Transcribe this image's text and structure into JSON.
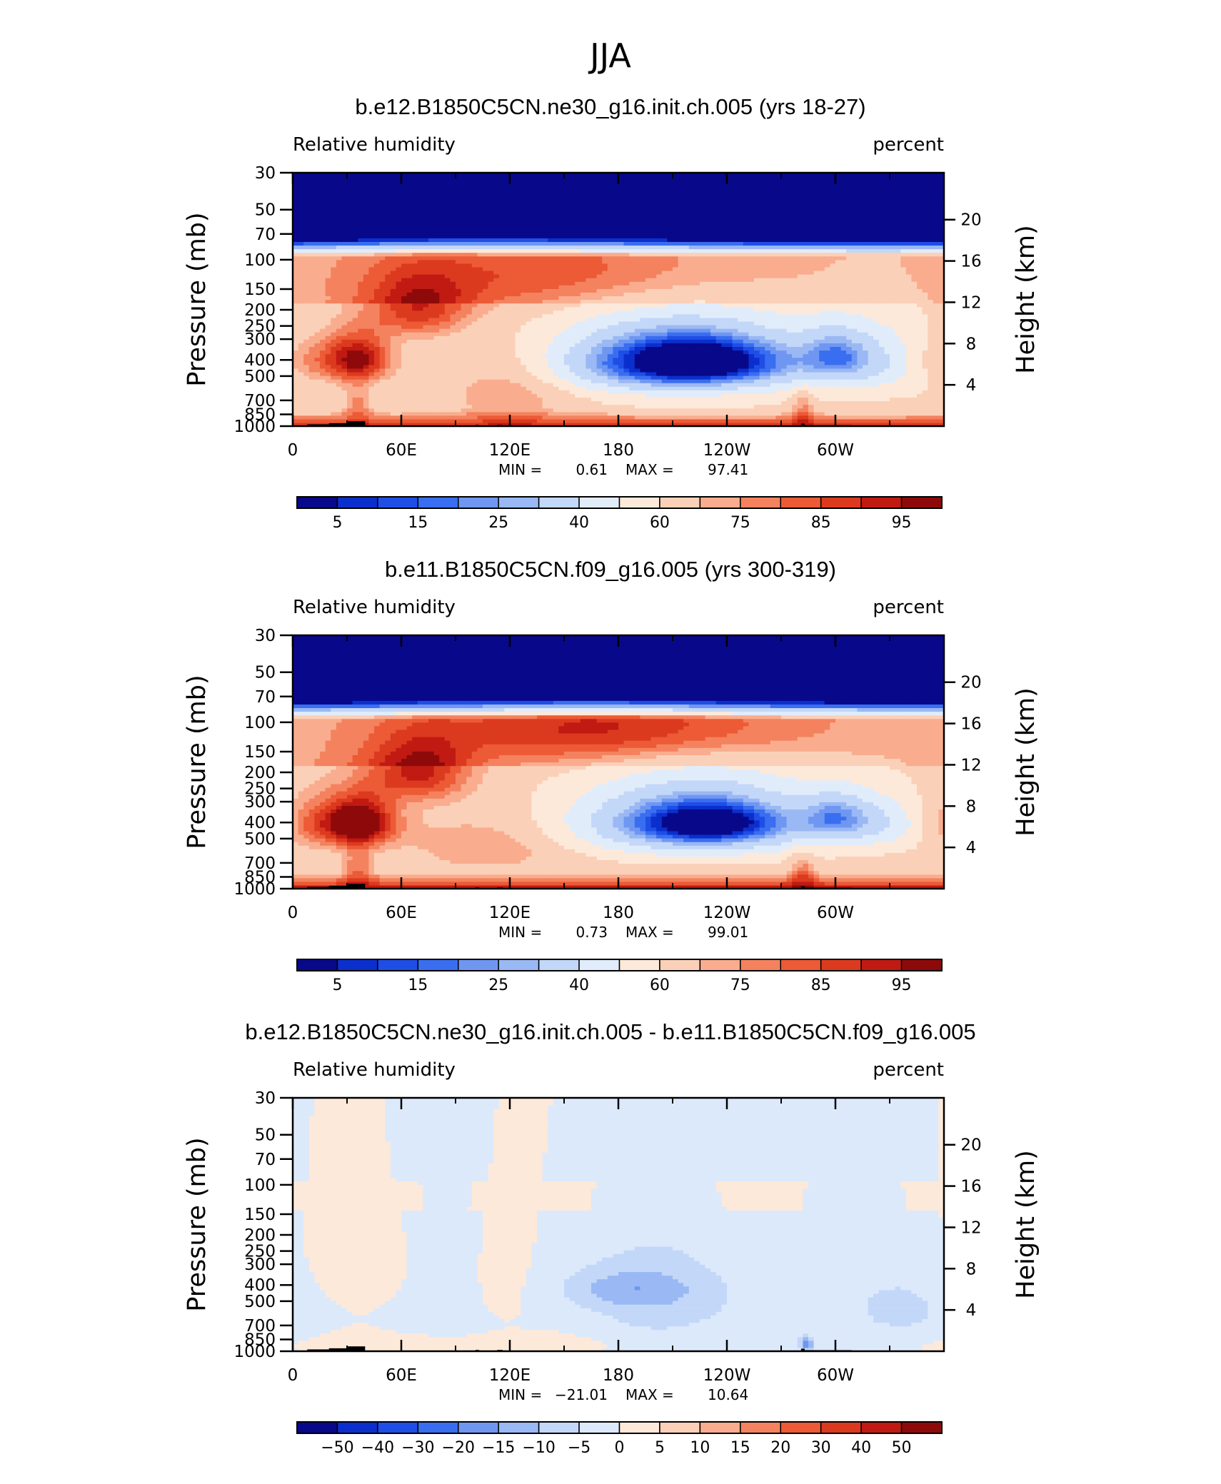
{
  "season": "JJA",
  "colors": {
    "rh_levels": [
      "#08088a",
      "#0b2fcc",
      "#1f4ee6",
      "#3a6ef0",
      "#6f97f2",
      "#9ab8f4",
      "#c3d7f8",
      "#e1ecfb",
      "#fde9d9",
      "#fbd0b8",
      "#f9ad8e",
      "#f4825f",
      "#ec5a36",
      "#dc3a1f",
      "#c01a12",
      "#8e0a0a"
    ],
    "diff_levels": [
      "#08088a",
      "#0b2fcc",
      "#1f4ee6",
      "#3a6ef0",
      "#6f97f2",
      "#9ab8f4",
      "#c3d7f8",
      "#dce9fb",
      "#fde9d9",
      "#fbd0b8",
      "#f9ad8e",
      "#f4825f",
      "#ec5a36",
      "#dc3a1f",
      "#c01a12",
      "#8e0a0a"
    ],
    "terrain": "#000000"
  },
  "chart_data": [
    {
      "type": "heatmap",
      "title": "b.e12.B1850C5CN.ne30_g16.init.ch.005 (yrs 18-27)",
      "left_string": "Relative  humidity",
      "right_string": "percent",
      "ylabel": "Pressure  (mb)",
      "ylabel_right": "Height  (km)",
      "x_ticks": [
        "0",
        "60E",
        "120E",
        "180",
        "120W",
        "60W"
      ],
      "x_tick_lon": [
        0,
        60,
        120,
        180,
        240,
        300
      ],
      "xlim": [
        0,
        360
      ],
      "y_ticks": [
        "1000",
        "850",
        "700",
        "500",
        "400",
        "300",
        "250",
        "200",
        "150",
        "100",
        "70",
        "50",
        "30"
      ],
      "y_tick_values": [
        1000,
        850,
        700,
        500,
        400,
        300,
        250,
        200,
        150,
        100,
        70,
        50,
        30
      ],
      "ylim": [
        1000,
        30
      ],
      "height_ticks": [
        "4",
        "8",
        "12",
        "16",
        "20"
      ],
      "height_values": [
        4,
        8,
        12,
        16,
        20
      ],
      "stats": {
        "min_label": "MIN =",
        "min": "0.61",
        "max_label": "MAX =",
        "max": "97.41"
      },
      "colorbar_labels": [
        "5",
        "15",
        "25",
        "40",
        "60",
        "75",
        "85",
        "95"
      ],
      "fields": {
        "background": 62,
        "blobs": [
          {
            "lon": 0,
            "p": 400,
            "dlon": 30,
            "dp": 110,
            "v": 30
          },
          {
            "lon": 37,
            "p": 390,
            "dlon": 12,
            "dp": 90,
            "v": 25
          },
          {
            "lon": 215,
            "p": 410,
            "dlon": 50,
            "dp": 140,
            "v": -60
          },
          {
            "lon": 225,
            "p": 400,
            "dlon": 22,
            "dp": 70,
            "v": -25
          },
          {
            "lon": 330,
            "p": 400,
            "dlon": 30,
            "dp": 120,
            "v": -35
          },
          {
            "lon": 300,
            "p": 360,
            "dlon": 12,
            "dp": 90,
            "v": -15
          },
          {
            "lon": 70,
            "p": 200,
            "dlon": 20,
            "dp": 60,
            "v": 25
          },
          {
            "lon": 120,
            "p": 600,
            "dlon": 25,
            "dp": 220,
            "v": 15
          },
          {
            "lon": 150,
            "p": 120,
            "dlon": 80,
            "dp": 50,
            "v": 15
          },
          {
            "lon": 36,
            "p": 750,
            "dlon": 6,
            "dp": 150,
            "v": 15
          },
          {
            "lon": 282,
            "p": 780,
            "dlon": 5,
            "dp": 160,
            "v": 15
          }
        ],
        "boundary_layer": 28,
        "upper_strat": true
      }
    },
    {
      "type": "heatmap",
      "title": "b.e11.B1850C5CN.f09_g16.005 (yrs 300-319)",
      "left_string": "Relative  humidity",
      "right_string": "percent",
      "ylabel": "Pressure  (mb)",
      "ylabel_right": "Height  (km)",
      "x_ticks": [
        "0",
        "60E",
        "120E",
        "180",
        "120W",
        "60W"
      ],
      "x_tick_lon": [
        0,
        60,
        120,
        180,
        240,
        300
      ],
      "xlim": [
        0,
        360
      ],
      "y_ticks": [
        "1000",
        "850",
        "700",
        "500",
        "400",
        "300",
        "250",
        "200",
        "150",
        "100",
        "70",
        "50",
        "30"
      ],
      "y_tick_values": [
        1000,
        850,
        700,
        500,
        400,
        300,
        250,
        200,
        150,
        100,
        70,
        50,
        30
      ],
      "ylim": [
        1000,
        30
      ],
      "height_ticks": [
        "4",
        "8",
        "12",
        "16",
        "20"
      ],
      "height_values": [
        4,
        8,
        12,
        16,
        20
      ],
      "stats": {
        "min_label": "MIN =",
        "min": "0.73",
        "max_label": "MAX =",
        "max": "99.01"
      },
      "colorbar_labels": [
        "5",
        "15",
        "25",
        "40",
        "60",
        "75",
        "85",
        "95"
      ],
      "fields": {
        "background": 64,
        "blobs": [
          {
            "lon": 10,
            "p": 400,
            "dlon": 28,
            "dp": 110,
            "v": 32
          },
          {
            "lon": 38,
            "p": 400,
            "dlon": 12,
            "dp": 90,
            "v": 28
          },
          {
            "lon": 225,
            "p": 400,
            "dlon": 48,
            "dp": 140,
            "v": -55
          },
          {
            "lon": 230,
            "p": 400,
            "dlon": 20,
            "dp": 60,
            "v": -25
          },
          {
            "lon": 335,
            "p": 400,
            "dlon": 28,
            "dp": 110,
            "v": -30
          },
          {
            "lon": 300,
            "p": 360,
            "dlon": 12,
            "dp": 80,
            "v": -18
          },
          {
            "lon": 70,
            "p": 200,
            "dlon": 20,
            "dp": 60,
            "v": 27
          },
          {
            "lon": 110,
            "p": 550,
            "dlon": 30,
            "dp": 150,
            "v": 12
          },
          {
            "lon": 180,
            "p": 110,
            "dlon": 70,
            "dp": 40,
            "v": 22
          },
          {
            "lon": 36,
            "p": 760,
            "dlon": 6,
            "dp": 150,
            "v": 15
          },
          {
            "lon": 282,
            "p": 790,
            "dlon": 5,
            "dp": 150,
            "v": 15
          }
        ],
        "boundary_layer": 30,
        "upper_strat": true
      }
    },
    {
      "type": "heatmap",
      "title": "b.e12.B1850C5CN.ne30_g16.init.ch.005 - b.e11.B1850C5CN.f09_g16.005",
      "left_string": "Relative  humidity",
      "right_string": "percent",
      "ylabel": "Pressure  (mb)",
      "ylabel_right": "Height  (km)",
      "x_ticks": [
        "0",
        "60E",
        "120E",
        "180",
        "120W",
        "60W"
      ],
      "x_tick_lon": [
        0,
        60,
        120,
        180,
        240,
        300
      ],
      "xlim": [
        0,
        360
      ],
      "y_ticks": [
        "1000",
        "850",
        "700",
        "500",
        "400",
        "300",
        "250",
        "200",
        "150",
        "100",
        "70",
        "50",
        "30"
      ],
      "y_tick_values": [
        1000,
        850,
        700,
        500,
        400,
        300,
        250,
        200,
        150,
        100,
        70,
        50,
        30
      ],
      "ylim": [
        1000,
        30
      ],
      "height_ticks": [
        "4",
        "8",
        "12",
        "16",
        "20"
      ],
      "height_values": [
        4,
        8,
        12,
        16,
        20
      ],
      "stats": {
        "min_label": "MIN =",
        "min": "−21.01",
        "max_label": "MAX =",
        "max": "10.64"
      },
      "colorbar_labels": [
        "−50",
        "−40",
        "−30",
        "−20",
        "−15",
        "−10",
        "−5",
        "0",
        "5",
        "10",
        "15",
        "20",
        "30",
        "40",
        "50"
      ],
      "fields": {
        "background": -1,
        "blobs": [
          {
            "lon": 35,
            "p": 280,
            "dlon": 20,
            "dp": 140,
            "v": 4
          },
          {
            "lon": 115,
            "p": 350,
            "dlon": 10,
            "dp": 200,
            "v": 4
          },
          {
            "lon": 185,
            "p": 420,
            "dlon": 25,
            "dp": 80,
            "v": -9
          },
          {
            "lon": 215,
            "p": 500,
            "dlon": 50,
            "dp": 230,
            "v": -5
          },
          {
            "lon": 345,
            "p": 560,
            "dlon": 22,
            "dp": 200,
            "v": -5
          },
          {
            "lon": 90,
            "p": 900,
            "dlon": 70,
            "dp": 90,
            "v": 4
          },
          {
            "lon": 284,
            "p": 900,
            "dlon": 3,
            "dp": 60,
            "v": -16
          }
        ],
        "boundary_layer": 0,
        "upper_strat": false
      }
    }
  ]
}
